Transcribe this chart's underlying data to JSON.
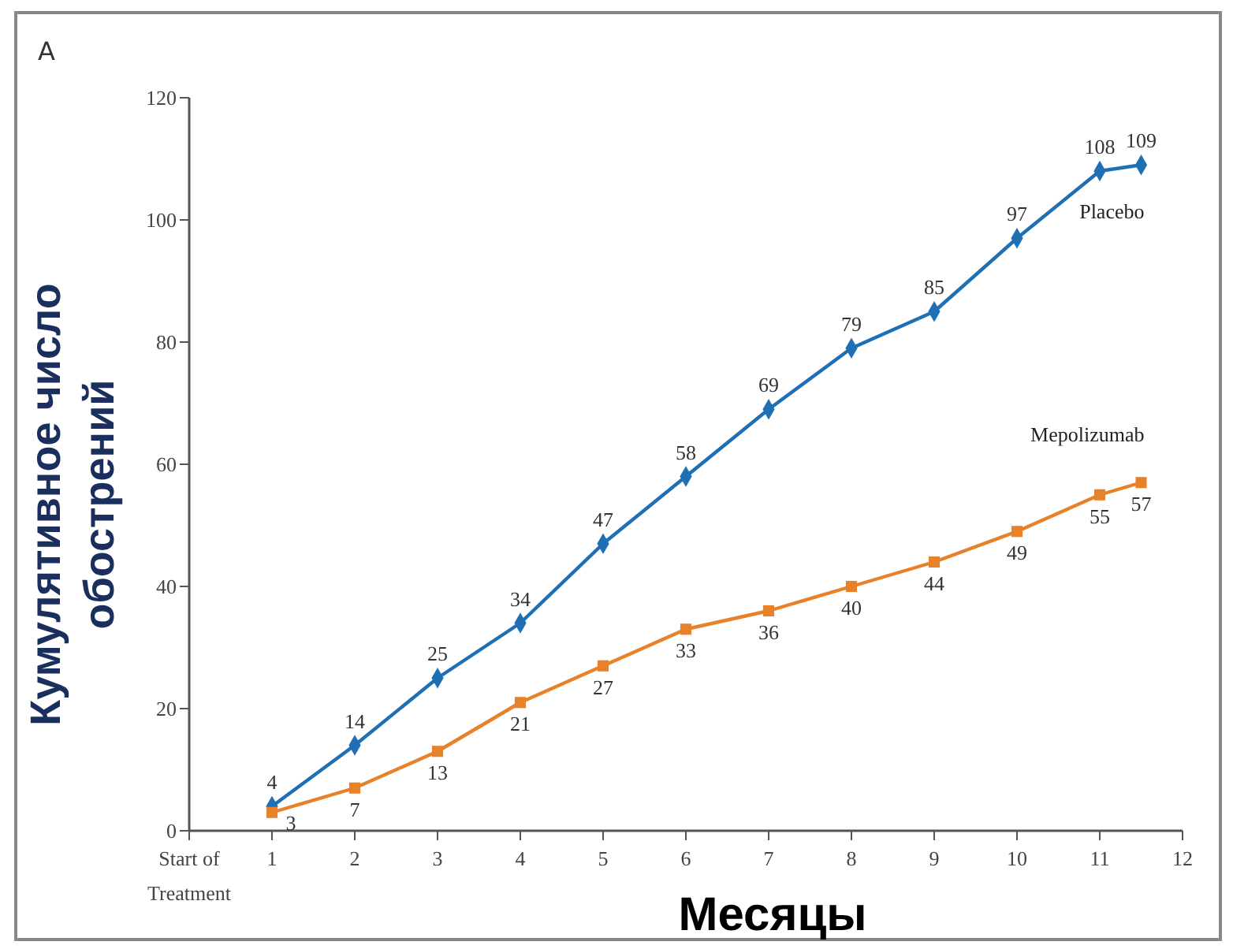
{
  "chart_data": {
    "type": "line",
    "annotations": [
      "A"
    ],
    "xlabel": "Месяцы",
    "ylabel": "Кумулятивное число обострений",
    "x": [
      1,
      2,
      3,
      4,
      5,
      6,
      7,
      8,
      9,
      10,
      11,
      11.5
    ],
    "series": [
      {
        "name": "Placebo",
        "color": "#1f6fb5",
        "marker": "diamond",
        "values": [
          4,
          14,
          25,
          34,
          47,
          58,
          69,
          79,
          85,
          97,
          108,
          109
        ]
      },
      {
        "name": "Mepolizumab",
        "color": "#e8822a",
        "marker": "square",
        "values": [
          3,
          7,
          13,
          21,
          27,
          33,
          36,
          40,
          44,
          49,
          55,
          57
        ]
      }
    ],
    "xlim": [
      0,
      12
    ],
    "xticks": [
      {
        "value": 0,
        "label": "Start of Treatment"
      },
      1,
      2,
      3,
      4,
      5,
      6,
      7,
      8,
      9,
      10,
      11,
      12
    ],
    "ylim": [
      0,
      120
    ],
    "yticks": [
      0,
      20,
      40,
      60,
      80,
      100,
      120
    ],
    "data_labels": true,
    "grid": false,
    "line_style": "solid"
  }
}
